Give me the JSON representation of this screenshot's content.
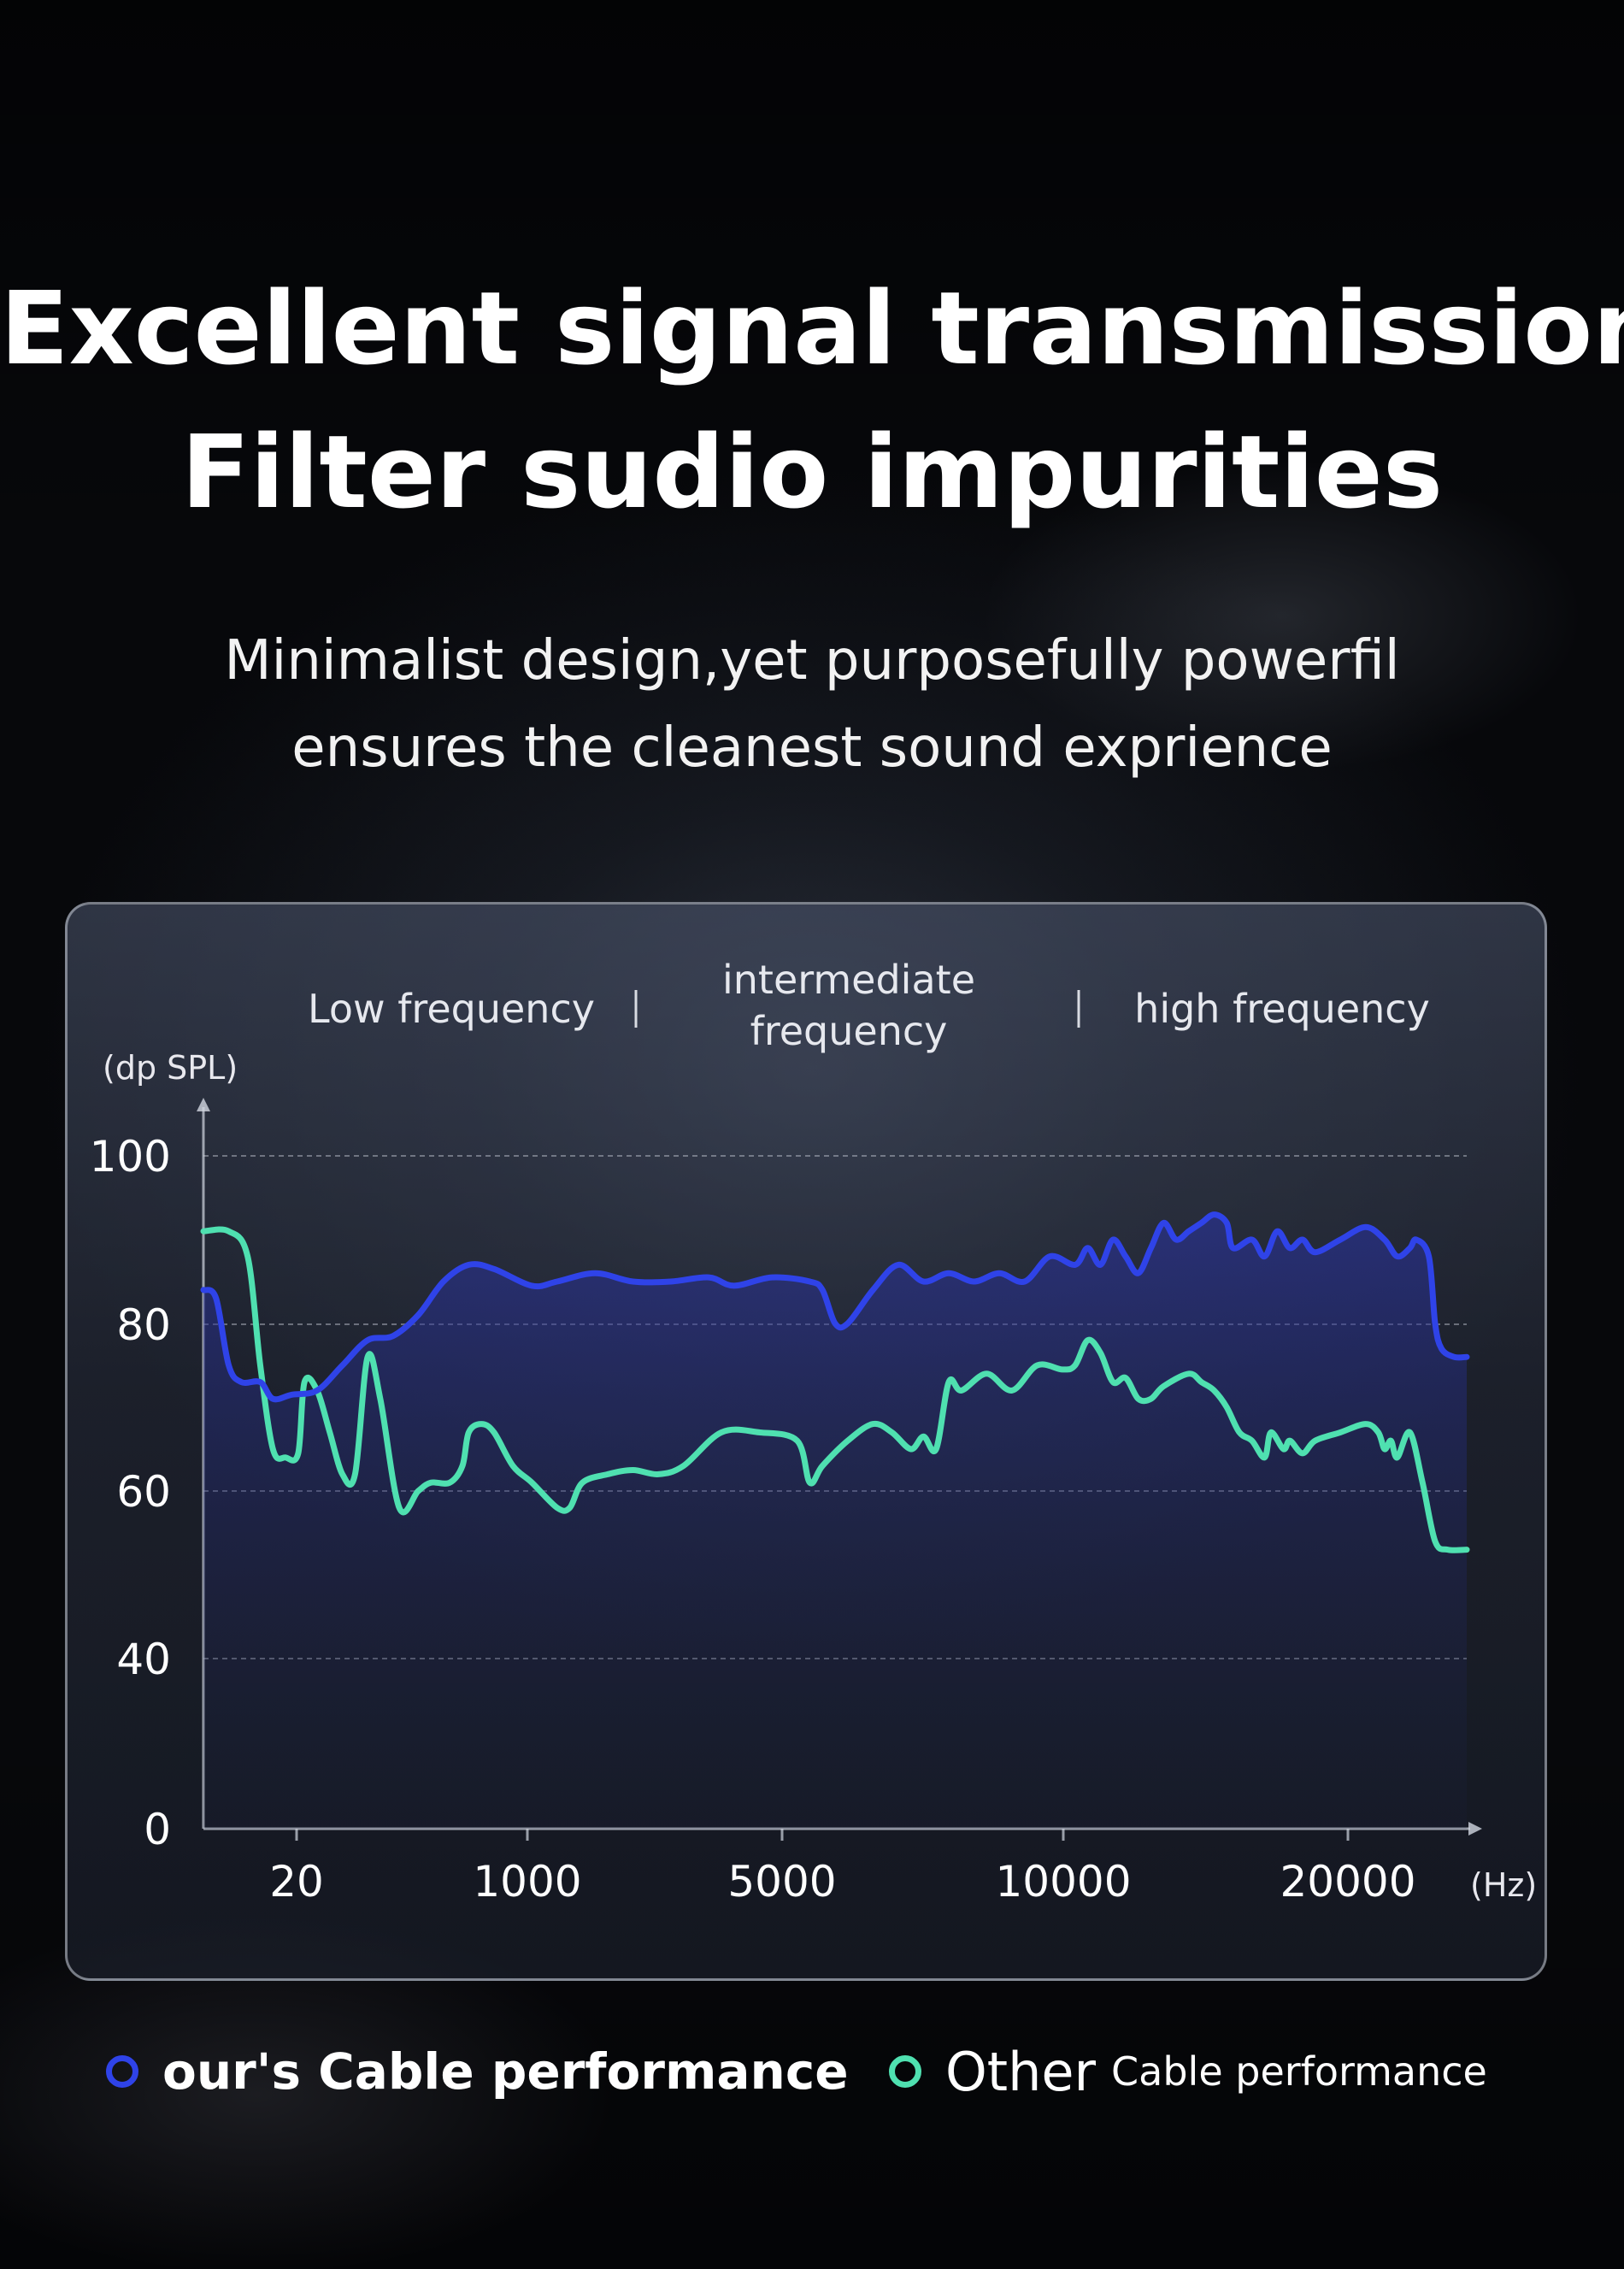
{
  "header": {
    "title_line1": "Excellent signal transmission",
    "title_line2": "Filter sudio impurities",
    "subtitle_line1": "Minimalist design,yet purposefully powerfil",
    "subtitle_line2": "ensures the cleanest sound exprience"
  },
  "chart_data": {
    "type": "line",
    "ylabel": "(dp SPL)",
    "xunit": "(Hz)",
    "bands": [
      "Low frequency",
      "intermediate frequency",
      "high frequency"
    ],
    "yticks": [
      100,
      80,
      60,
      40,
      0
    ],
    "xticks": [
      "20",
      "1000",
      "5000",
      "10000",
      "20000"
    ],
    "grid": true,
    "series": [
      {
        "name": "our's Cable performance",
        "color": "#2f43e8",
        "points": [
          [
            0.0,
            84
          ],
          [
            0.01,
            83
          ],
          [
            0.02,
            75
          ],
          [
            0.03,
            73
          ],
          [
            0.045,
            73
          ],
          [
            0.055,
            71
          ],
          [
            0.07,
            71.5
          ],
          [
            0.09,
            72
          ],
          [
            0.11,
            75
          ],
          [
            0.13,
            78
          ],
          [
            0.15,
            78.5
          ],
          [
            0.17,
            81
          ],
          [
            0.19,
            85
          ],
          [
            0.21,
            87
          ],
          [
            0.23,
            86.5
          ],
          [
            0.26,
            84.5
          ],
          [
            0.28,
            85
          ],
          [
            0.31,
            86
          ],
          [
            0.34,
            85
          ],
          [
            0.37,
            85
          ],
          [
            0.4,
            85.5
          ],
          [
            0.42,
            84.5
          ],
          [
            0.45,
            85.5
          ],
          [
            0.48,
            85
          ],
          [
            0.49,
            84
          ],
          [
            0.5,
            80
          ],
          [
            0.51,
            80
          ],
          [
            0.53,
            84
          ],
          [
            0.55,
            87
          ],
          [
            0.57,
            85
          ],
          [
            0.59,
            86
          ],
          [
            0.61,
            85
          ],
          [
            0.63,
            86
          ],
          [
            0.65,
            85
          ],
          [
            0.67,
            88
          ],
          [
            0.69,
            87
          ],
          [
            0.7,
            89
          ],
          [
            0.71,
            87
          ],
          [
            0.72,
            90
          ],
          [
            0.73,
            88
          ],
          [
            0.74,
            86
          ],
          [
            0.75,
            89
          ],
          [
            0.76,
            92
          ],
          [
            0.77,
            90
          ],
          [
            0.78,
            91
          ],
          [
            0.79,
            92
          ],
          [
            0.8,
            93
          ],
          [
            0.81,
            92
          ],
          [
            0.815,
            89
          ],
          [
            0.83,
            90
          ],
          [
            0.84,
            88
          ],
          [
            0.85,
            91
          ],
          [
            0.86,
            89
          ],
          [
            0.87,
            90
          ],
          [
            0.88,
            88.5
          ],
          [
            0.9,
            90
          ],
          [
            0.92,
            91.5
          ],
          [
            0.935,
            90
          ],
          [
            0.945,
            88
          ],
          [
            0.955,
            89
          ],
          [
            0.96,
            90
          ],
          [
            0.97,
            88
          ],
          [
            0.975,
            80
          ],
          [
            0.98,
            77
          ],
          [
            0.99,
            76
          ],
          [
            1.0,
            76
          ]
        ]
      },
      {
        "name": "Other Cable performance",
        "color": "#4fe0b0",
        "points": [
          [
            0.0,
            91
          ],
          [
            0.02,
            91
          ],
          [
            0.035,
            88
          ],
          [
            0.045,
            75
          ],
          [
            0.055,
            65
          ],
          [
            0.065,
            64
          ],
          [
            0.075,
            64.5
          ],
          [
            0.08,
            73
          ],
          [
            0.09,
            72
          ],
          [
            0.1,
            67
          ],
          [
            0.11,
            62
          ],
          [
            0.12,
            62
          ],
          [
            0.13,
            76
          ],
          [
            0.14,
            71
          ],
          [
            0.155,
            58
          ],
          [
            0.17,
            60
          ],
          [
            0.18,
            61
          ],
          [
            0.195,
            61
          ],
          [
            0.205,
            63
          ],
          [
            0.21,
            67
          ],
          [
            0.22,
            68
          ],
          [
            0.23,
            67
          ],
          [
            0.245,
            63
          ],
          [
            0.26,
            61
          ],
          [
            0.28,
            58
          ],
          [
            0.29,
            58
          ],
          [
            0.3,
            61
          ],
          [
            0.32,
            62
          ],
          [
            0.34,
            62.5
          ],
          [
            0.36,
            62
          ],
          [
            0.38,
            63
          ],
          [
            0.41,
            67
          ],
          [
            0.44,
            67
          ],
          [
            0.47,
            66
          ],
          [
            0.48,
            61
          ],
          [
            0.49,
            63
          ],
          [
            0.51,
            66
          ],
          [
            0.53,
            68
          ],
          [
            0.545,
            67
          ],
          [
            0.56,
            65
          ],
          [
            0.57,
            66.5
          ],
          [
            0.58,
            65
          ],
          [
            0.59,
            73
          ],
          [
            0.6,
            72
          ],
          [
            0.62,
            74
          ],
          [
            0.64,
            72
          ],
          [
            0.66,
            75
          ],
          [
            0.68,
            74.5
          ],
          [
            0.69,
            75
          ],
          [
            0.7,
            78
          ],
          [
            0.71,
            76.5
          ],
          [
            0.72,
            73
          ],
          [
            0.73,
            73.5
          ],
          [
            0.74,
            71
          ],
          [
            0.75,
            71
          ],
          [
            0.76,
            72.5
          ],
          [
            0.78,
            74
          ],
          [
            0.79,
            73
          ],
          [
            0.8,
            72
          ],
          [
            0.81,
            70
          ],
          [
            0.82,
            67
          ],
          [
            0.83,
            66
          ],
          [
            0.84,
            64
          ],
          [
            0.845,
            67
          ],
          [
            0.855,
            65
          ],
          [
            0.86,
            66
          ],
          [
            0.87,
            64.5
          ],
          [
            0.88,
            66
          ],
          [
            0.9,
            67
          ],
          [
            0.92,
            68
          ],
          [
            0.93,
            67
          ],
          [
            0.935,
            65
          ],
          [
            0.94,
            66
          ],
          [
            0.945,
            64
          ],
          [
            0.955,
            67
          ],
          [
            0.965,
            61
          ],
          [
            0.975,
            54
          ],
          [
            0.985,
            53
          ],
          [
            1.0,
            53
          ]
        ]
      }
    ]
  },
  "legend": {
    "ours_label": "our's Cable performance",
    "other_big": "Other",
    "other_small": "Cable performance"
  }
}
